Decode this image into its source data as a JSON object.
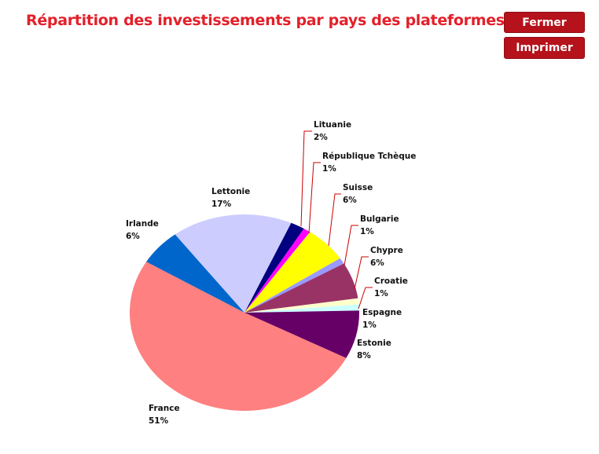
{
  "header": {
    "title": "Répartition des investissements par pays des plateformes"
  },
  "buttons": {
    "close": "Fermer",
    "print": "Imprimer"
  },
  "chart_data": {
    "type": "pie",
    "title": "",
    "labels": [
      "Lituanie",
      "République Tchèque",
      "Suisse",
      "Bulgarie",
      "Chypre",
      "Croatie",
      "Espagne",
      "Estonie",
      "France",
      "Irlande",
      "Lettonie"
    ],
    "values": [
      2,
      1,
      6,
      1,
      6,
      1,
      1,
      8,
      51,
      6,
      17
    ],
    "value_labels": [
      "2%",
      "1%",
      "6%",
      "1%",
      "6%",
      "1%",
      "1%",
      "8%",
      "51%",
      "6%",
      "17%"
    ],
    "colors": [
      "#000080",
      "#FF00FF",
      "#FFFF00",
      "#9999FF",
      "#993366",
      "#FFFFCC",
      "#CCFFFF",
      "#660066",
      "#FF8080",
      "#0066CC",
      "#CCCCFF"
    ],
    "leader_line_color": "#CC0000"
  }
}
